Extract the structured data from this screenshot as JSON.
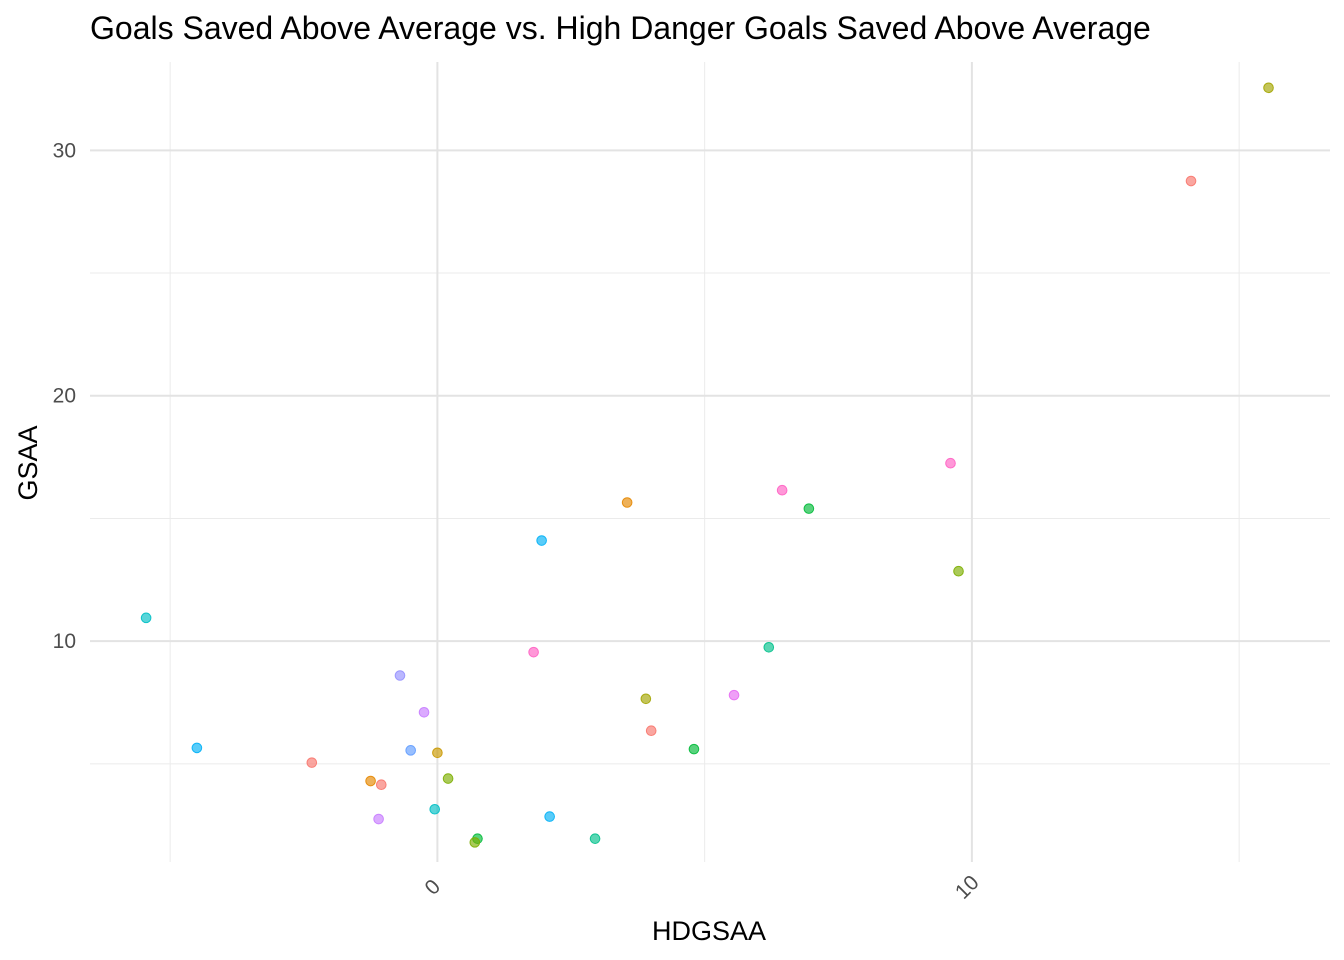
{
  "chart_data": {
    "type": "scatter",
    "title": "Goals Saved Above Average vs. High Danger Goals Saved Above Average",
    "xlabel": "HDGSAA",
    "ylabel": "GSAA",
    "xlim": [
      -6.5,
      16.7
    ],
    "ylim": [
      1.0,
      33.6
    ],
    "x_major_ticks": [
      0,
      10
    ],
    "x_minor_ticks": [
      -5,
      5,
      15
    ],
    "y_major_ticks": [
      10,
      20,
      30
    ],
    "y_minor_ticks": [
      5,
      15,
      25
    ],
    "grid": true,
    "legend": "none",
    "points": [
      {
        "x": -5.45,
        "y": 10.95,
        "color": "#00BFC4"
      },
      {
        "x": -4.5,
        "y": 5.65,
        "color": "#00B0F6"
      },
      {
        "x": -2.35,
        "y": 5.05,
        "color": "#F8766D"
      },
      {
        "x": -1.25,
        "y": 4.3,
        "color": "#E58700"
      },
      {
        "x": -1.05,
        "y": 4.15,
        "color": "#F8766D"
      },
      {
        "x": -1.1,
        "y": 2.75,
        "color": "#C77CFF"
      },
      {
        "x": -0.7,
        "y": 8.6,
        "color": "#9590FF"
      },
      {
        "x": -0.5,
        "y": 5.55,
        "color": "#619CFF"
      },
      {
        "x": -0.25,
        "y": 7.1,
        "color": "#C77CFF"
      },
      {
        "x": 0.0,
        "y": 5.45,
        "color": "#C99800"
      },
      {
        "x": 0.2,
        "y": 4.4,
        "color": "#7CAE00"
      },
      {
        "x": -0.05,
        "y": 3.15,
        "color": "#00BFC4"
      },
      {
        "x": 0.75,
        "y": 1.95,
        "color": "#00BA38"
      },
      {
        "x": 0.7,
        "y": 1.8,
        "color": "#7CAE00"
      },
      {
        "x": 1.8,
        "y": 9.55,
        "color": "#FF61C3"
      },
      {
        "x": 1.95,
        "y": 14.1,
        "color": "#00B0F6"
      },
      {
        "x": 2.1,
        "y": 2.85,
        "color": "#00B0F6"
      },
      {
        "x": 2.95,
        "y": 1.95,
        "color": "#00C08B"
      },
      {
        "x": 3.55,
        "y": 15.65,
        "color": "#E58700"
      },
      {
        "x": 3.9,
        "y": 7.65,
        "color": "#A3A500"
      },
      {
        "x": 4.0,
        "y": 6.35,
        "color": "#F8766D"
      },
      {
        "x": 4.8,
        "y": 5.6,
        "color": "#00BA38"
      },
      {
        "x": 5.55,
        "y": 7.8,
        "color": "#E76BF3"
      },
      {
        "x": 6.2,
        "y": 9.75,
        "color": "#00C08B"
      },
      {
        "x": 6.45,
        "y": 16.15,
        "color": "#FF61C3"
      },
      {
        "x": 6.95,
        "y": 15.4,
        "color": "#00BA38"
      },
      {
        "x": 9.6,
        "y": 17.25,
        "color": "#FF61C3"
      },
      {
        "x": 9.75,
        "y": 12.85,
        "color": "#7CAE00"
      },
      {
        "x": 14.1,
        "y": 28.75,
        "color": "#F8766D"
      },
      {
        "x": 15.55,
        "y": 32.55,
        "color": "#A3A500"
      }
    ]
  }
}
